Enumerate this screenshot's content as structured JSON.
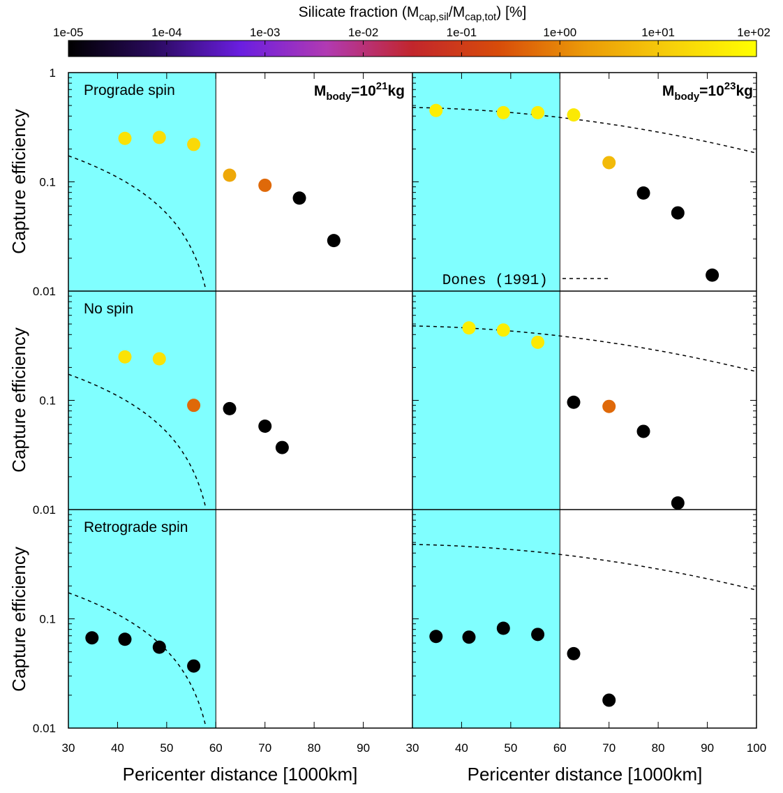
{
  "chart_data": {
    "type": "scatter",
    "colorbar": {
      "label_main": "Silicate fraction (M",
      "label_sub1": "cap,sil",
      "label_mid": "/M",
      "label_sub2": "cap,tot",
      "label_end": ") [%]",
      "scale": "log",
      "range": [
        1e-05,
        100
      ],
      "ticks": [
        "1e-05",
        "1e-04",
        "1e-03",
        "1e-02",
        "1e-01",
        "1e+00",
        "1e+01",
        "1e+02"
      ],
      "colormap": [
        "#000000",
        "#2a0a5e",
        "#6a1ee0",
        "#b13ab2",
        "#c2262c",
        "#d84c0a",
        "#eb9a08",
        "#f7cf0a",
        "#ffff00"
      ]
    },
    "x_axis": {
      "label": "Pericenter distance [1000km]",
      "left_ticks": [
        "30",
        "40",
        "50",
        "60",
        "70",
        "80",
        "90"
      ],
      "right_ticks": [
        "30",
        "40",
        "50",
        "60",
        "70",
        "80",
        "90",
        "100"
      ],
      "range": [
        30,
        100
      ]
    },
    "y_axis": {
      "label": "Capture efficiency",
      "scale": "log",
      "range": [
        0.01,
        1
      ],
      "ticks": [
        "1",
        "0.1",
        "0.01"
      ]
    },
    "shaded_region": {
      "x_range": [
        30,
        60
      ],
      "color": "#80ffff"
    },
    "panel_titles": {
      "rows": [
        "Prograde spin",
        "No spin",
        "Retrograde spin"
      ],
      "mass_base": "M",
      "mass_sub": "body",
      "mass_eq": "=10",
      "mass_exp_left": "21",
      "mass_exp_right": "23",
      "mass_unit": "kg"
    },
    "legend": {
      "entry": "Dones (1991)"
    },
    "panels": [
      {
        "row": 0,
        "col": 0,
        "curve": "steep",
        "points": [
          {
            "x": 41.5,
            "y": 0.25,
            "silicate": 30
          },
          {
            "x": 48.5,
            "y": 0.255,
            "silicate": 25
          },
          {
            "x": 55.5,
            "y": 0.22,
            "silicate": 20
          },
          {
            "x": 62.8,
            "y": 0.115,
            "silicate": 3
          },
          {
            "x": 70,
            "y": 0.093,
            "silicate": 0.5
          },
          {
            "x": 77,
            "y": 0.071,
            "silicate": 1e-05
          },
          {
            "x": 84,
            "y": 0.029,
            "silicate": 1e-05
          }
        ]
      },
      {
        "row": 0,
        "col": 1,
        "curve": "flat",
        "points": [
          {
            "x": 34.8,
            "y": 0.45,
            "silicate": 50
          },
          {
            "x": 48.5,
            "y": 0.43,
            "silicate": 50
          },
          {
            "x": 55.5,
            "y": 0.43,
            "silicate": 50
          },
          {
            "x": 62.8,
            "y": 0.41,
            "silicate": 40
          },
          {
            "x": 70,
            "y": 0.15,
            "silicate": 6
          },
          {
            "x": 77,
            "y": 0.079,
            "silicate": 1e-05
          },
          {
            "x": 84,
            "y": 0.052,
            "silicate": 1e-05
          },
          {
            "x": 91,
            "y": 0.014,
            "silicate": 1e-05
          }
        ]
      },
      {
        "row": 1,
        "col": 0,
        "curve": "steep",
        "points": [
          {
            "x": 41.5,
            "y": 0.25,
            "silicate": 30
          },
          {
            "x": 48.5,
            "y": 0.24,
            "silicate": 30
          },
          {
            "x": 55.5,
            "y": 0.09,
            "silicate": 0.5
          },
          {
            "x": 62.8,
            "y": 0.084,
            "silicate": 1e-05
          },
          {
            "x": 70,
            "y": 0.058,
            "silicate": 1e-05
          },
          {
            "x": 73.5,
            "y": 0.037,
            "silicate": 1e-05
          }
        ]
      },
      {
        "row": 1,
        "col": 1,
        "curve": "flat",
        "points": [
          {
            "x": 41.5,
            "y": 0.46,
            "silicate": 50
          },
          {
            "x": 48.5,
            "y": 0.44,
            "silicate": 50
          },
          {
            "x": 55.5,
            "y": 0.34,
            "silicate": 40
          },
          {
            "x": 62.8,
            "y": 0.096,
            "silicate": 1e-05
          },
          {
            "x": 70,
            "y": 0.088,
            "silicate": 0.5
          },
          {
            "x": 77,
            "y": 0.052,
            "silicate": 1e-05
          },
          {
            "x": 84,
            "y": 0.0115,
            "silicate": 1e-05
          }
        ]
      },
      {
        "row": 2,
        "col": 0,
        "curve": "steep",
        "points": [
          {
            "x": 34.8,
            "y": 0.067,
            "silicate": 1e-05
          },
          {
            "x": 41.5,
            "y": 0.065,
            "silicate": 1e-05
          },
          {
            "x": 48.5,
            "y": 0.055,
            "silicate": 1e-05
          },
          {
            "x": 55.5,
            "y": 0.037,
            "silicate": 1e-05
          }
        ]
      },
      {
        "row": 2,
        "col": 1,
        "curve": "flat",
        "points": [
          {
            "x": 34.8,
            "y": 0.069,
            "silicate": 1e-05
          },
          {
            "x": 41.5,
            "y": 0.068,
            "silicate": 1e-05
          },
          {
            "x": 48.5,
            "y": 0.082,
            "silicate": 1e-05
          },
          {
            "x": 55.5,
            "y": 0.072,
            "silicate": 1e-05
          },
          {
            "x": 62.8,
            "y": 0.048,
            "silicate": 1e-05
          },
          {
            "x": 70,
            "y": 0.018,
            "silicate": 1e-05
          }
        ]
      }
    ]
  }
}
